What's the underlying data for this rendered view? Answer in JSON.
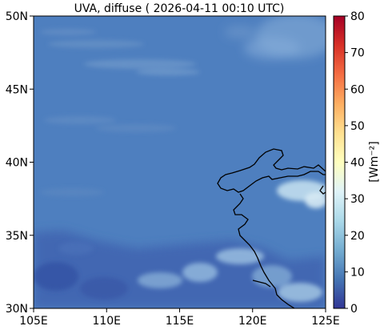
{
  "title": "UVA, diffuse ( 2026-04-11 00:10 UTC)",
  "x_ticks": [
    "105E",
    "110E",
    "115E",
    "120E",
    "125E"
  ],
  "y_ticks": [
    "30N",
    "35N",
    "40N",
    "45N",
    "50N"
  ],
  "colorbar": {
    "label": "[Wm⁻²]",
    "ticks": [
      "0",
      "10",
      "20",
      "30",
      "40",
      "50",
      "60",
      "70",
      "80"
    ],
    "min": 0,
    "max": 80,
    "colormap_stops": [
      "#313695",
      "#4575b4",
      "#74add1",
      "#abd9e9",
      "#e0f3f8",
      "#ffffbf",
      "#fee090",
      "#fdae61",
      "#f46d43",
      "#d73027",
      "#a50026"
    ]
  },
  "map": {
    "lon_range": [
      105,
      125
    ],
    "lat_range": [
      30,
      50
    ],
    "background_color": "#4e7fbf",
    "coastline_color": "#000000"
  }
}
